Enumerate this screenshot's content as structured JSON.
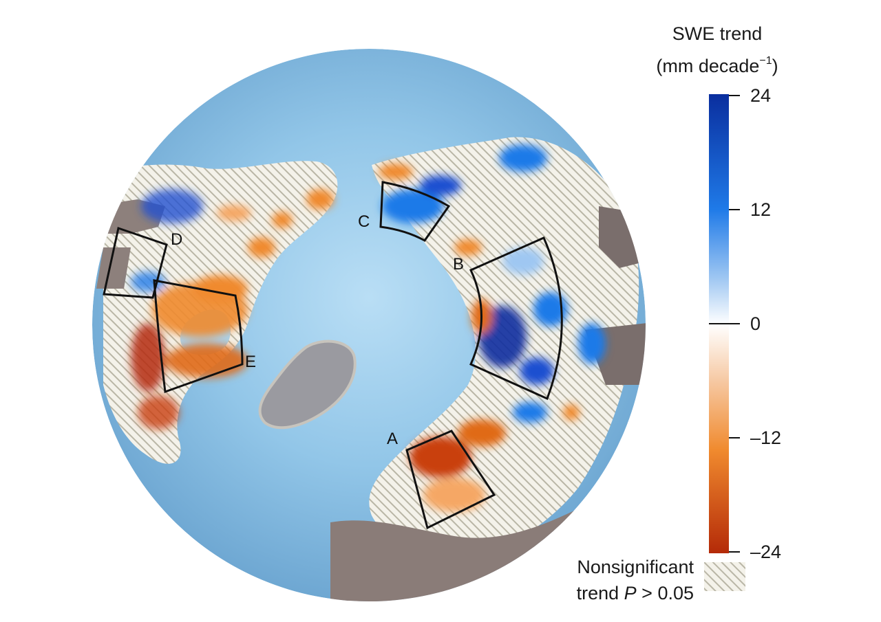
{
  "legend": {
    "title_line1": "SWE trend",
    "title_line2_prefix": "(mm decade",
    "title_line2_exponent": "−1",
    "title_line2_suffix": ")",
    "ticks": [
      "24",
      "12",
      "0",
      "–12",
      "–24"
    ],
    "colors": {
      "max_positive": "#0a2e9e",
      "mid_positive": "#1f7ae8",
      "low_positive": "#9fc7f2",
      "zero": "#ffffff",
      "low_negative": "#f6c8a2",
      "mid_negative": "#f08a2e",
      "max_negative": "#b42a08"
    }
  },
  "hatch_legend": {
    "line1": "Nonsignificant",
    "line2_prefix": "trend ",
    "line2_var": "P",
    "line2_suffix": " > 0.05",
    "swatch_color": "#c9c7b8"
  },
  "regions": [
    "A",
    "B",
    "C",
    "D",
    "E"
  ],
  "map_colors": {
    "ocean": "#7fb7dc",
    "ocean_center": "#b7dcf3",
    "greenland": "#9a9a9e",
    "land_gray": "#8a7c78",
    "region_outline": "#111111"
  }
}
